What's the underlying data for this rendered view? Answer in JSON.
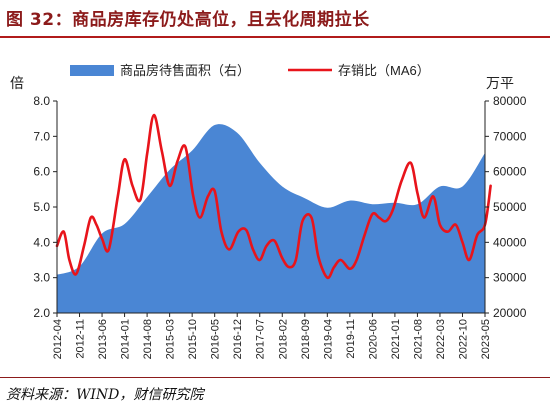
{
  "header": {
    "title": "图 32：商品房库存仍处高位，且去化周期拉长"
  },
  "footer": {
    "source": "资料来源：WIND，财信研究院"
  },
  "chart_data": {
    "type": "line",
    "title": "图 32：商品房库存仍处高位，且去化周期拉长",
    "legend_position": "top",
    "grid": false,
    "x_tick_labels": [
      "2012-04",
      "2012-11",
      "2013-06",
      "2014-01",
      "2014-08",
      "2015-03",
      "2015-10",
      "2016-05",
      "2016-12",
      "2017-07",
      "2018-02",
      "2018-09",
      "2019-04",
      "2019-11",
      "2020-06",
      "2021-01",
      "2021-08",
      "2022-03",
      "2022-10",
      "2023-05"
    ],
    "y_left": {
      "label": "倍",
      "min": 2.0,
      "max": 8.0,
      "ticks": [
        "2.0",
        "3.0",
        "4.0",
        "5.0",
        "6.0",
        "7.0",
        "8.0"
      ]
    },
    "y_right": {
      "label": "万平",
      "min": 20000,
      "max": 80000,
      "ticks": [
        "20000",
        "30000",
        "40000",
        "50000",
        "60000",
        "70000",
        "80000"
      ]
    },
    "series": [
      {
        "name": "商品房待售面积（右）",
        "kind": "area",
        "axis": "right",
        "color": "#4a86d4",
        "x": [
          0,
          1,
          2,
          3,
          4,
          5,
          6,
          7,
          8,
          9,
          10,
          11,
          12,
          13,
          14,
          15,
          16,
          17,
          18,
          19
        ],
        "values": [
          30800,
          33200,
          42500,
          45200,
          52800,
          60500,
          66000,
          73200,
          71000,
          62500,
          55800,
          52500,
          49800,
          51800,
          50800,
          51200,
          50800,
          55800,
          55800,
          65300
        ]
      },
      {
        "name": "存销比（MA6）",
        "kind": "line",
        "axis": "left",
        "color": "#e8141b",
        "x": [
          0,
          0.3,
          0.55,
          0.85,
          1.2,
          1.5,
          1.75,
          2.0,
          2.3,
          2.7,
          3.0,
          3.35,
          3.7,
          4.0,
          4.3,
          4.65,
          5.0,
          5.35,
          5.7,
          6.05,
          6.35,
          6.7,
          7.0,
          7.3,
          7.65,
          8.05,
          8.4,
          8.7,
          9.0,
          9.3,
          9.65,
          10.0,
          10.3,
          10.6,
          10.9,
          11.3,
          11.6,
          12.0,
          12.3,
          12.6,
          13.0,
          13.3,
          13.65,
          14.0,
          14.3,
          14.6,
          14.9,
          15.3,
          15.7,
          16.0,
          16.3,
          16.7,
          17.0,
          17.35,
          17.7,
          18.0,
          18.3,
          18.65,
          19.0,
          19.25
        ],
        "values": [
          3.9,
          4.3,
          3.5,
          3.1,
          3.9,
          4.7,
          4.5,
          4.1,
          3.8,
          5.3,
          6.35,
          5.6,
          5.2,
          6.5,
          7.6,
          6.6,
          5.6,
          6.3,
          6.7,
          5.3,
          4.7,
          5.3,
          5.45,
          4.3,
          3.8,
          4.3,
          4.35,
          3.8,
          3.5,
          3.9,
          4.05,
          3.55,
          3.3,
          3.5,
          4.6,
          4.7,
          3.6,
          3.0,
          3.3,
          3.5,
          3.25,
          3.5,
          4.2,
          4.8,
          4.7,
          4.6,
          4.9,
          5.75,
          6.25,
          5.4,
          4.7,
          5.3,
          4.5,
          4.3,
          4.5,
          4.0,
          3.5,
          4.2,
          4.5,
          5.6
        ]
      }
    ]
  }
}
